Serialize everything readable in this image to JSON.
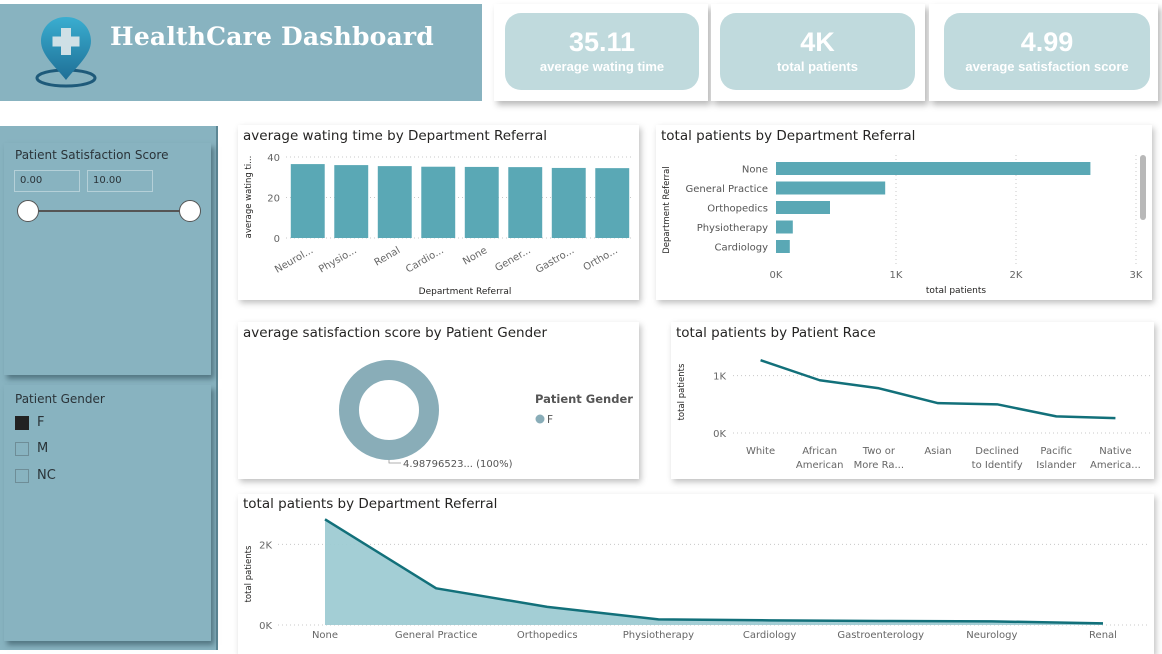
{
  "header": {
    "title": "HealthCare Dashboard",
    "logo_icon": "medical-location-pin-icon"
  },
  "kpis": [
    {
      "value": "35.11",
      "label": "average wating time"
    },
    {
      "value": "4K",
      "label": "total patients"
    },
    {
      "value": "4.99",
      "label": "average satisfaction score"
    }
  ],
  "colors": {
    "panel": "#88b3c0",
    "bar": "#5aa8b5",
    "line": "#12707a",
    "area": "#9ecbd3",
    "donut": "#89adb8",
    "kpi_bg": "#c0dadd"
  },
  "filters": {
    "satisfaction": {
      "title": "Patient Satisfaction Score",
      "min": "0.00",
      "max": "10.00"
    },
    "gender": {
      "title": "Patient Gender",
      "options": [
        {
          "label": "F",
          "checked": true
        },
        {
          "label": "M",
          "checked": false
        },
        {
          "label": "NC",
          "checked": false
        }
      ]
    }
  },
  "chart_data": [
    {
      "id": "wait",
      "type": "bar",
      "title": "average wating time by Department Referral",
      "xlabel": "Department Referral",
      "ylabel": "average wating ti...",
      "categories": [
        "Neurol...",
        "Physio...",
        "Renal",
        "Cardio...",
        "None",
        "Gener...",
        "Gastro...",
        "Ortho..."
      ],
      "values": [
        36.5,
        36.0,
        35.5,
        35.2,
        35.1,
        35.0,
        34.6,
        34.5
      ],
      "yticks": [
        "0",
        "20",
        "40"
      ],
      "ylim": [
        0,
        40
      ],
      "grid": true
    },
    {
      "id": "deptbar",
      "type": "bar",
      "orientation": "horizontal",
      "title": "total patients by Department Referral",
      "xlabel": "total patients",
      "ylabel": "Department Referral",
      "categories": [
        "None",
        "General Practice",
        "Orthopedics",
        "Physiotherapy",
        "Cardiology"
      ],
      "values": [
        2620,
        910,
        450,
        140,
        115
      ],
      "xticks": [
        "0K",
        "1K",
        "2K",
        "3K"
      ],
      "xlim": [
        0,
        3000
      ],
      "grid": true
    },
    {
      "id": "donut",
      "type": "pie",
      "title": "average satisfaction score by Patient Gender",
      "legend_title": "Patient Gender",
      "legend": [
        "F"
      ],
      "values": [
        4.98796523
      ],
      "data_label": "4.98796523... (100%)",
      "legend_position": "right"
    },
    {
      "id": "race",
      "type": "line",
      "title": "total patients by Patient Race",
      "ylabel": "total patients",
      "categories": [
        [
          "White"
        ],
        [
          "African",
          "American"
        ],
        [
          "Two or",
          "More Ra..."
        ],
        [
          "Asian"
        ],
        [
          "Declined",
          "to Identify"
        ],
        [
          "Pacific",
          "Islander"
        ],
        [
          "Native",
          "America..."
        ]
      ],
      "values": [
        1270,
        920,
        780,
        520,
        500,
        290,
        260
      ],
      "yticks": [
        "0K",
        "1K"
      ],
      "ylim": [
        0,
        1500
      ],
      "grid": true
    },
    {
      "id": "deptarea",
      "type": "area",
      "title": "total patients by Department Referral",
      "ylabel": "total patients",
      "categories": [
        "None",
        "General Practice",
        "Orthopedics",
        "Physiotherapy",
        "Cardiology",
        "Gastroenterology",
        "Neurology",
        "Renal"
      ],
      "values": [
        2620,
        910,
        450,
        140,
        115,
        100,
        90,
        40
      ],
      "yticks": [
        "0K",
        "2K"
      ],
      "ylim": [
        0,
        3000
      ],
      "grid": true
    }
  ]
}
